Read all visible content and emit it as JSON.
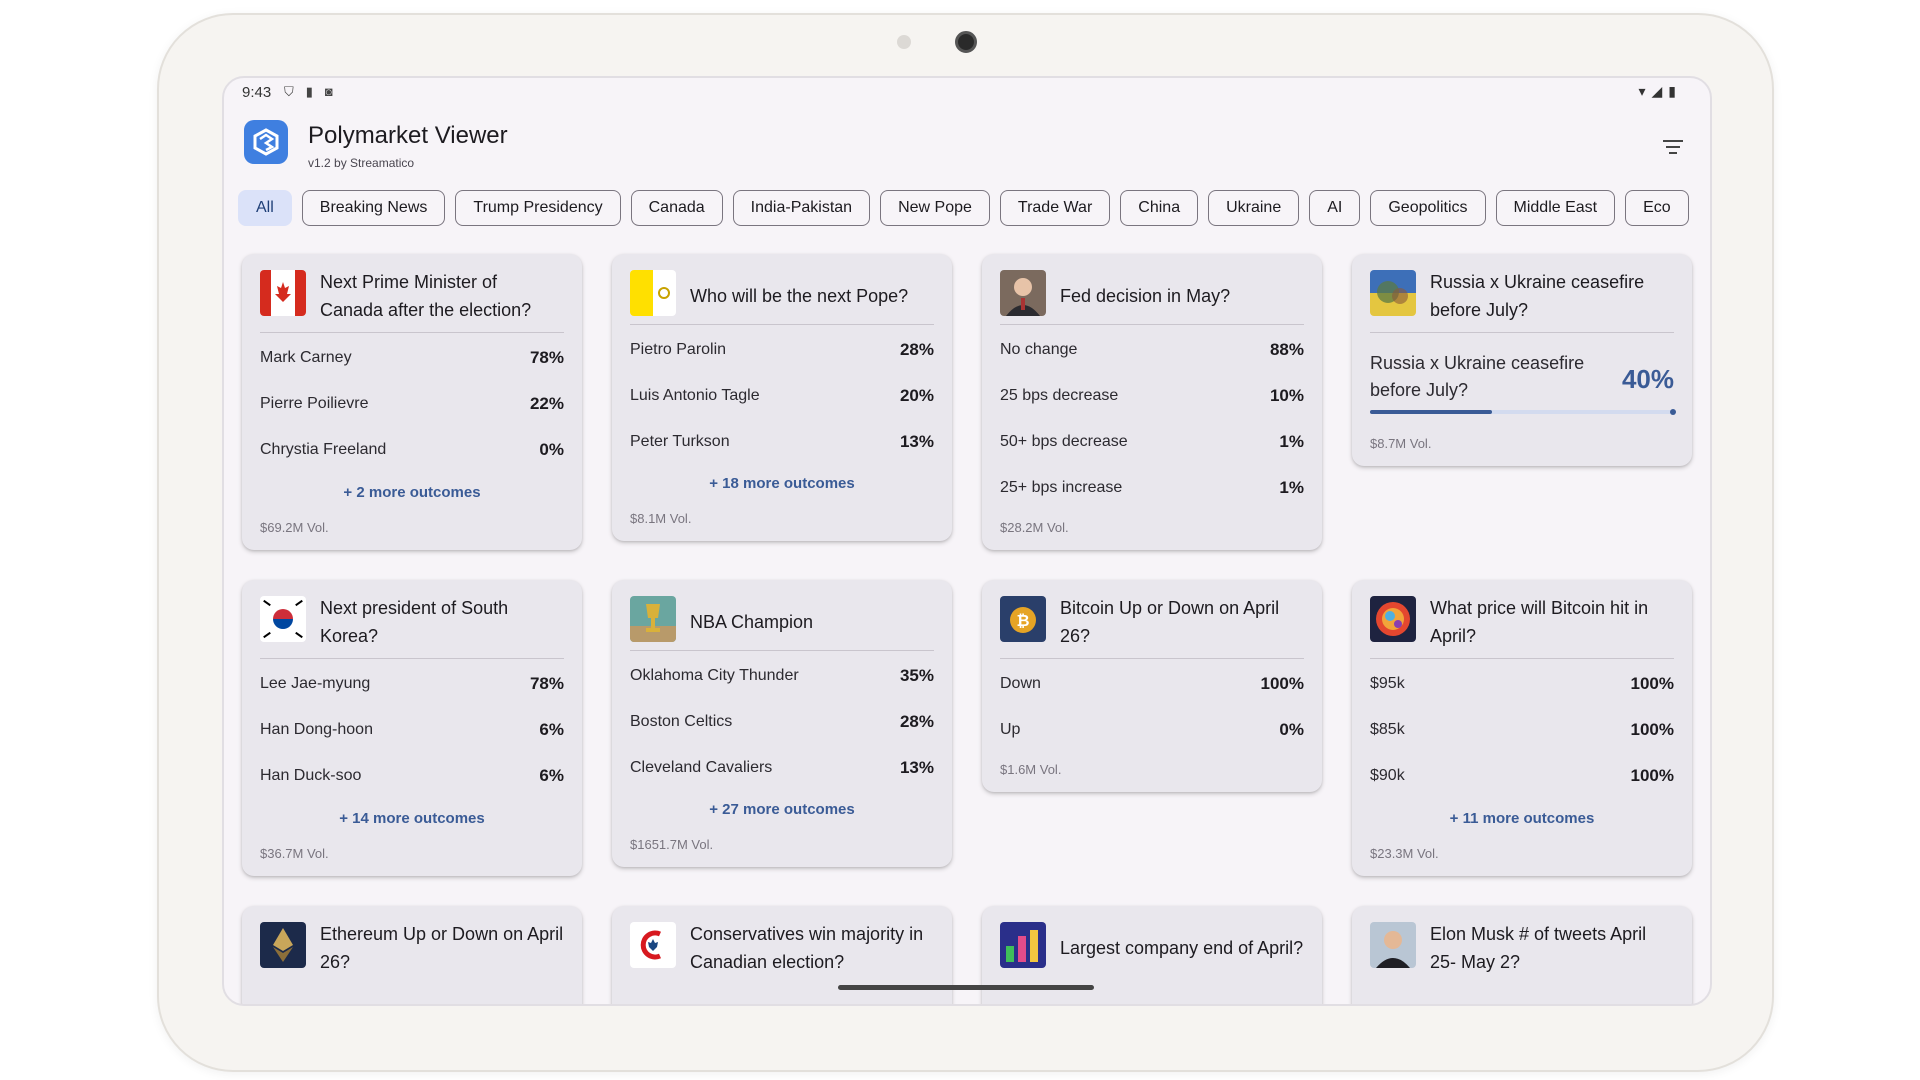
{
  "status": {
    "time": "9:43"
  },
  "app": {
    "title": "Polymarket Viewer",
    "subtitle": "v1.2 by Streamatico"
  },
  "chips": [
    "All",
    "Breaking News",
    "Trump Presidency",
    "Canada",
    "India-Pakistan",
    "New Pope",
    "Trade War",
    "China",
    "Ukraine",
    "AI",
    "Geopolitics",
    "Middle East",
    "Eco"
  ],
  "cards": {
    "canada_pm": {
      "title": "Next Prime Minister of Canada after the election?",
      "outcomes": [
        {
          "name": "Mark Carney",
          "pct": "78%"
        },
        {
          "name": "Pierre Poilievre",
          "pct": "22%"
        },
        {
          "name": "Chrystia Freeland",
          "pct": "0%"
        }
      ],
      "more": "+ 2 more outcomes",
      "volume": "$69.2M Vol."
    },
    "pope": {
      "title": "Who will be the next Pope?",
      "outcomes": [
        {
          "name": "Pietro Parolin",
          "pct": "28%"
        },
        {
          "name": "Luis Antonio Tagle",
          "pct": "20%"
        },
        {
          "name": "Peter Turkson",
          "pct": "13%"
        }
      ],
      "more": "+ 18 more outcomes",
      "volume": "$8.1M Vol."
    },
    "fed": {
      "title": "Fed decision in May?",
      "outcomes": [
        {
          "name": "No change",
          "pct": "88%"
        },
        {
          "name": "25 bps decrease",
          "pct": "10%"
        },
        {
          "name": "50+ bps decrease",
          "pct": "1%"
        },
        {
          "name": "25+ bps increase",
          "pct": "1%"
        }
      ],
      "volume": "$28.2M Vol."
    },
    "ukraine": {
      "title": "Russia x Ukraine ceasefire before July?",
      "question": "Russia x Ukraine ceasefire before July?",
      "pct": "40%",
      "probability": 0.4,
      "volume": "$8.7M Vol."
    },
    "korea": {
      "title": "Next president of South Korea?",
      "outcomes": [
        {
          "name": "Lee Jae-myung",
          "pct": "78%"
        },
        {
          "name": "Han Dong-hoon",
          "pct": "6%"
        },
        {
          "name": "Han Duck-soo",
          "pct": "6%"
        }
      ],
      "more": "+ 14 more outcomes",
      "volume": "$36.7M Vol."
    },
    "nba": {
      "title": "NBA Champion",
      "outcomes": [
        {
          "name": "Oklahoma City Thunder",
          "pct": "35%"
        },
        {
          "name": "Boston Celtics",
          "pct": "28%"
        },
        {
          "name": "Cleveland Cavaliers",
          "pct": "13%"
        }
      ],
      "more": "+ 27 more outcomes",
      "volume": "$1651.7M Vol."
    },
    "btc_updown": {
      "title": "Bitcoin Up or Down on April 26?",
      "outcomes": [
        {
          "name": "Down",
          "pct": "100%"
        },
        {
          "name": "Up",
          "pct": "0%"
        }
      ],
      "volume": "$1.6M Vol."
    },
    "btc_price": {
      "title": "What price will Bitcoin hit in April?",
      "outcomes": [
        {
          "name": "$95k",
          "pct": "100%"
        },
        {
          "name": "$85k",
          "pct": "100%"
        },
        {
          "name": "$90k",
          "pct": "100%"
        }
      ],
      "more": "+ 11 more outcomes",
      "volume": "$23.3M Vol."
    },
    "eth": {
      "title": "Ethereum Up or Down on April 26?"
    },
    "conservatives": {
      "title": "Conservatives win majority in Canadian election?"
    },
    "largest_co": {
      "title": "Largest company end of April?"
    },
    "musk": {
      "title": "Elon Musk # of tweets April 25- May 2?"
    }
  },
  "icons": {
    "filter": "filter-icon",
    "logo": "polymarket-logo-icon"
  },
  "colors": {
    "accent": "#3a5b96",
    "chip_active": "#dbe2f9",
    "card_bg": "#e9e7ed"
  }
}
